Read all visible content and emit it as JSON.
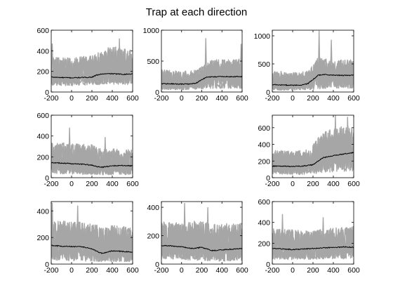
{
  "figure_title": "Trap at each direction",
  "colors": {
    "traces": "#a6a6a6",
    "mean": "#000000",
    "axes": "#000000"
  },
  "chart_data": [
    {
      "type": "line",
      "panel": "row1-col1",
      "xlim": [
        -200,
        600
      ],
      "ylim": [
        0,
        600
      ],
      "xticks": [
        -200,
        0,
        200,
        400,
        600
      ],
      "yticks": [
        0,
        200,
        400,
        600
      ],
      "mean": {
        "x": [
          -200,
          -100,
          0,
          100,
          200,
          250,
          300,
          400,
          500,
          600
        ],
        "y": [
          145,
          140,
          138,
          140,
          145,
          165,
          175,
          178,
          172,
          175
        ]
      },
      "upper": {
        "x": [
          -200,
          0,
          200,
          300,
          400,
          500,
          600
        ],
        "y": [
          340,
          330,
          360,
          400,
          450,
          420,
          410
        ]
      },
      "lower": {
        "x": [
          -200,
          0,
          200,
          400,
          600
        ],
        "y": [
          65,
          60,
          70,
          75,
          70
        ]
      },
      "peaks": [
        {
          "x": 470,
          "y": 520
        },
        {
          "x": -190,
          "y": 470
        }
      ]
    },
    {
      "type": "line",
      "panel": "row1-col2",
      "xlim": [
        -200,
        600
      ],
      "ylim": [
        0,
        1000
      ],
      "xticks": [
        -200,
        0,
        200,
        400,
        600
      ],
      "yticks": [
        0,
        500,
        1000
      ],
      "mean": {
        "x": [
          -200,
          -100,
          0,
          100,
          150,
          200,
          250,
          300,
          400,
          500,
          600
        ],
        "y": [
          135,
          132,
          128,
          130,
          150,
          200,
          240,
          245,
          250,
          248,
          250
        ]
      },
      "upper": {
        "x": [
          -200,
          0,
          150,
          200,
          300,
          400,
          500,
          600
        ],
        "y": [
          360,
          340,
          360,
          420,
          520,
          530,
          520,
          540
        ]
      },
      "lower": {
        "x": [
          -200,
          0,
          200,
          400,
          600
        ],
        "y": [
          40,
          35,
          45,
          60,
          55
        ]
      },
      "peaks": [
        {
          "x": 240,
          "y": 870
        },
        {
          "x": 590,
          "y": 780
        }
      ]
    },
    {
      "type": "line",
      "panel": "row1-col3",
      "xlim": [
        -200,
        600
      ],
      "ylim": [
        0,
        1100
      ],
      "xticks": [
        -200,
        0,
        200,
        400,
        600
      ],
      "yticks": [
        0,
        500,
        1000
      ],
      "mean": {
        "x": [
          -200,
          -100,
          0,
          100,
          150,
          200,
          250,
          300,
          400,
          500,
          600
        ],
        "y": [
          130,
          125,
          120,
          125,
          150,
          220,
          300,
          310,
          300,
          295,
          300
        ]
      },
      "upper": {
        "x": [
          -200,
          0,
          150,
          200,
          250,
          300,
          400,
          500,
          600
        ],
        "y": [
          380,
          350,
          370,
          480,
          620,
          600,
          560,
          580,
          570
        ]
      },
      "lower": {
        "x": [
          -200,
          0,
          200,
          400,
          600
        ],
        "y": [
          35,
          30,
          45,
          70,
          60
        ]
      },
      "peaks": [
        {
          "x": 260,
          "y": 1090
        },
        {
          "x": 380,
          "y": 930
        }
      ]
    },
    {
      "type": "line",
      "panel": "row2-col1",
      "xlim": [
        -200,
        600
      ],
      "ylim": [
        0,
        600
      ],
      "xticks": [
        -200,
        0,
        200,
        400,
        600
      ],
      "yticks": [
        0,
        200,
        400,
        600
      ],
      "mean": {
        "x": [
          -200,
          -100,
          0,
          100,
          200,
          250,
          300,
          400,
          500,
          600
        ],
        "y": [
          145,
          140,
          135,
          130,
          120,
          105,
          100,
          115,
          118,
          115
        ]
      },
      "upper": {
        "x": [
          -200,
          0,
          200,
          300,
          400,
          600
        ],
        "y": [
          340,
          330,
          320,
          270,
          280,
          270
        ]
      },
      "lower": {
        "x": [
          -200,
          0,
          200,
          400,
          600
        ],
        "y": [
          40,
          35,
          30,
          25,
          30
        ]
      },
      "peaks": [
        {
          "x": -20,
          "y": 480
        },
        {
          "x": 330,
          "y": 390
        }
      ]
    },
    {
      "type": "line",
      "panel": "row2-col3",
      "xlim": [
        -200,
        600
      ],
      "ylim": [
        0,
        750
      ],
      "xticks": [
        -200,
        0,
        200,
        400,
        600
      ],
      "yticks": [
        0,
        200,
        400,
        600
      ],
      "mean": {
        "x": [
          -200,
          -100,
          0,
          100,
          200,
          250,
          300,
          400,
          500,
          600
        ],
        "y": [
          140,
          138,
          135,
          140,
          155,
          200,
          240,
          265,
          285,
          300
        ]
      },
      "upper": {
        "x": [
          -200,
          0,
          150,
          200,
          250,
          300,
          400,
          500,
          600
        ],
        "y": [
          330,
          320,
          340,
          400,
          480,
          540,
          600,
          620,
          610
        ]
      },
      "lower": {
        "x": [
          -200,
          0,
          200,
          400,
          600
        ],
        "y": [
          40,
          35,
          45,
          70,
          80
        ]
      },
      "peaks": [
        {
          "x": 420,
          "y": 750
        },
        {
          "x": 540,
          "y": 730
        }
      ]
    },
    {
      "type": "line",
      "panel": "row3-col1",
      "xlim": [
        -200,
        600
      ],
      "ylim": [
        0,
        470
      ],
      "xticks": [
        -200,
        0,
        200,
        400,
        600
      ],
      "yticks": [
        0,
        200,
        400
      ],
      "mean": {
        "x": [
          -200,
          -100,
          0,
          100,
          200,
          250,
          300,
          400,
          500,
          600
        ],
        "y": [
          140,
          135,
          132,
          130,
          115,
          95,
          80,
          100,
          95,
          90
        ]
      },
      "upper": {
        "x": [
          -200,
          0,
          200,
          300,
          400,
          600
        ],
        "y": [
          330,
          320,
          310,
          280,
          290,
          280
        ]
      },
      "lower": {
        "x": [
          -200,
          0,
          200,
          400,
          600
        ],
        "y": [
          30,
          25,
          20,
          15,
          20
        ]
      },
      "peaks": [
        {
          "x": -190,
          "y": 460
        },
        {
          "x": 60,
          "y": 440
        }
      ]
    },
    {
      "type": "line",
      "panel": "row3-col2",
      "xlim": [
        -200,
        600
      ],
      "ylim": [
        0,
        440
      ],
      "xticks": [
        -200,
        0,
        200,
        400,
        600
      ],
      "yticks": [
        0,
        200,
        400
      ],
      "mean": {
        "x": [
          -200,
          -100,
          0,
          100,
          200,
          250,
          300,
          400,
          500,
          600
        ],
        "y": [
          130,
          128,
          122,
          110,
          118,
          108,
          95,
          100,
          105,
          110
        ]
      },
      "upper": {
        "x": [
          -200,
          0,
          200,
          300,
          400,
          600
        ],
        "y": [
          300,
          290,
          310,
          280,
          285,
          290
        ]
      },
      "lower": {
        "x": [
          -200,
          0,
          200,
          400,
          600
        ],
        "y": [
          35,
          30,
          25,
          20,
          25
        ]
      },
      "peaks": [
        {
          "x": 30,
          "y": 430
        },
        {
          "x": 260,
          "y": 400
        }
      ]
    },
    {
      "type": "line",
      "panel": "row3-col3",
      "xlim": [
        -200,
        600
      ],
      "ylim": [
        0,
        600
      ],
      "xticks": [
        -200,
        0,
        200,
        400,
        600
      ],
      "yticks": [
        0,
        200,
        400,
        600
      ],
      "mean": {
        "x": [
          -200,
          -100,
          0,
          100,
          200,
          300,
          400,
          500,
          600
        ],
        "y": [
          150,
          145,
          140,
          145,
          150,
          155,
          160,
          165,
          160
        ]
      },
      "upper": {
        "x": [
          -200,
          0,
          200,
          400,
          600
        ],
        "y": [
          340,
          330,
          320,
          350,
          360
        ]
      },
      "lower": {
        "x": [
          -200,
          0,
          200,
          400,
          600
        ],
        "y": [
          45,
          40,
          45,
          50,
          50
        ]
      },
      "peaks": [
        {
          "x": -100,
          "y": 480
        },
        {
          "x": 300,
          "y": 450
        }
      ]
    }
  ]
}
